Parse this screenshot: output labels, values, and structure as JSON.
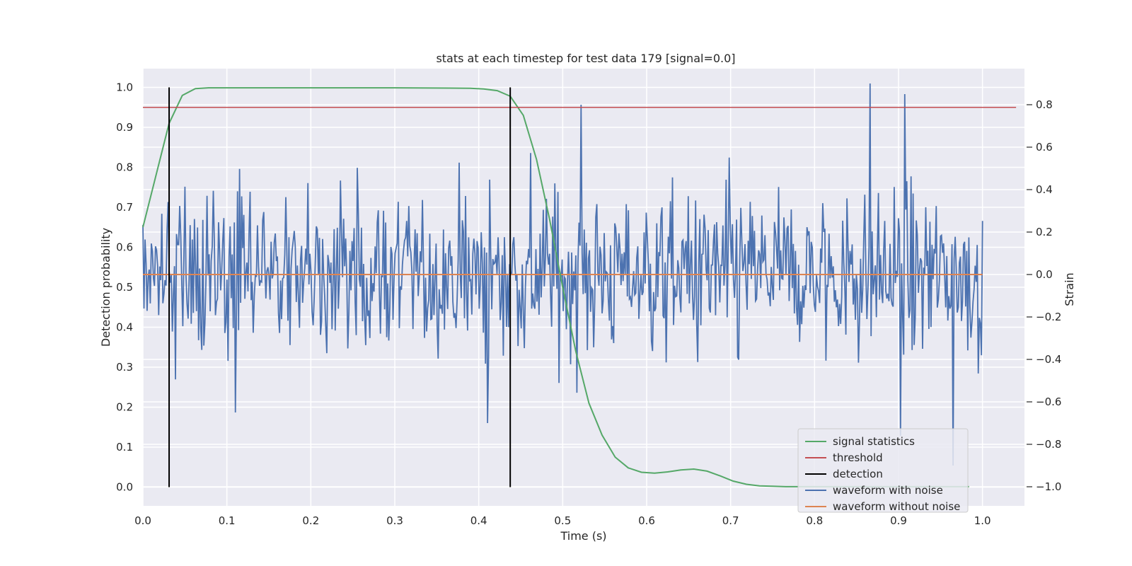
{
  "chart_data": {
    "type": "line",
    "title": "stats at each timestep for test data 179 [signal=0.0]",
    "xlabel": "Time (s)",
    "ylabel_left": "Detection probability",
    "ylabel_right": "Strain",
    "xlim": [
      0.0,
      1.05
    ],
    "ylim_left": [
      -0.047,
      1.047
    ],
    "ylim_right": [
      -1.09,
      0.97
    ],
    "x_ticks": [
      "0.0",
      "0.1",
      "0.2",
      "0.3",
      "0.4",
      "0.5",
      "0.6",
      "0.7",
      "0.8",
      "0.9",
      "1.0"
    ],
    "y_ticks_left": [
      "0.0",
      "0.1",
      "0.2",
      "0.3",
      "0.4",
      "0.5",
      "0.6",
      "0.7",
      "0.8",
      "0.9",
      "1.0"
    ],
    "y_ticks_right": [
      "−1.0",
      "−0.8",
      "−0.6",
      "−0.4",
      "−0.2",
      "0.0",
      "0.2",
      "0.4",
      "0.6",
      "0.8"
    ],
    "grid": true,
    "legend_position": "lower-right",
    "background_color": "#EAEAF2",
    "series": [
      {
        "name": "signal statistics",
        "color": "#55A868",
        "axis": "left",
        "x": [
          0.0,
          0.0156,
          0.0312,
          0.0469,
          0.0625,
          0.0781,
          0.1,
          0.2,
          0.3,
          0.39,
          0.406,
          0.422,
          0.4375,
          0.4531,
          0.4688,
          0.4844,
          0.5,
          0.5156,
          0.5312,
          0.5469,
          0.5625,
          0.5781,
          0.5938,
          0.6094,
          0.625,
          0.6406,
          0.6562,
          0.6719,
          0.6875,
          0.7031,
          0.7188,
          0.7344,
          0.75,
          0.7656,
          0.8,
          0.9,
          0.96,
          0.984
        ],
        "y": [
          0.65,
          0.78,
          0.91,
          0.98,
          0.997,
          0.999,
          0.999,
          0.999,
          0.999,
          0.998,
          0.996,
          0.992,
          0.978,
          0.93,
          0.82,
          0.67,
          0.5,
          0.34,
          0.21,
          0.13,
          0.075,
          0.048,
          0.037,
          0.035,
          0.038,
          0.043,
          0.045,
          0.04,
          0.028,
          0.015,
          0.007,
          0.003,
          0.002,
          0.001,
          0.001,
          0.001,
          0.001,
          0.001
        ]
      },
      {
        "name": "threshold",
        "color": "#C44E52",
        "axis": "left",
        "x": [
          0.0,
          1.04
        ],
        "y": [
          0.95,
          0.95
        ]
      },
      {
        "name": "detection",
        "color": "#000000",
        "axis": "left",
        "lines_at_x": [
          0.0312,
          0.4375
        ],
        "y": [
          0.0,
          1.0
        ]
      },
      {
        "name": "waveform with noise",
        "color": "#4C72B0",
        "axis": "right",
        "x_range": [
          0.0,
          1.0
        ],
        "n_points": 800,
        "description_values": "noisy strain between about -0.9 and 0.9",
        "peaks": [
          {
            "x": 0.866,
            "y": 0.9
          },
          {
            "x": 0.907,
            "y": 0.85
          },
          {
            "x": 0.522,
            "y": 0.8
          },
          {
            "x": 0.903,
            "y": -0.76
          },
          {
            "x": 0.965,
            "y": -0.9
          },
          {
            "x": 0.41,
            "y": -0.7
          },
          {
            "x": 0.11,
            "y": -0.65
          }
        ]
      },
      {
        "name": "waveform without noise",
        "color": "#DD8452",
        "axis": "right",
        "x": [
          0.0,
          1.0
        ],
        "y": [
          0.0,
          0.0
        ]
      }
    ]
  }
}
